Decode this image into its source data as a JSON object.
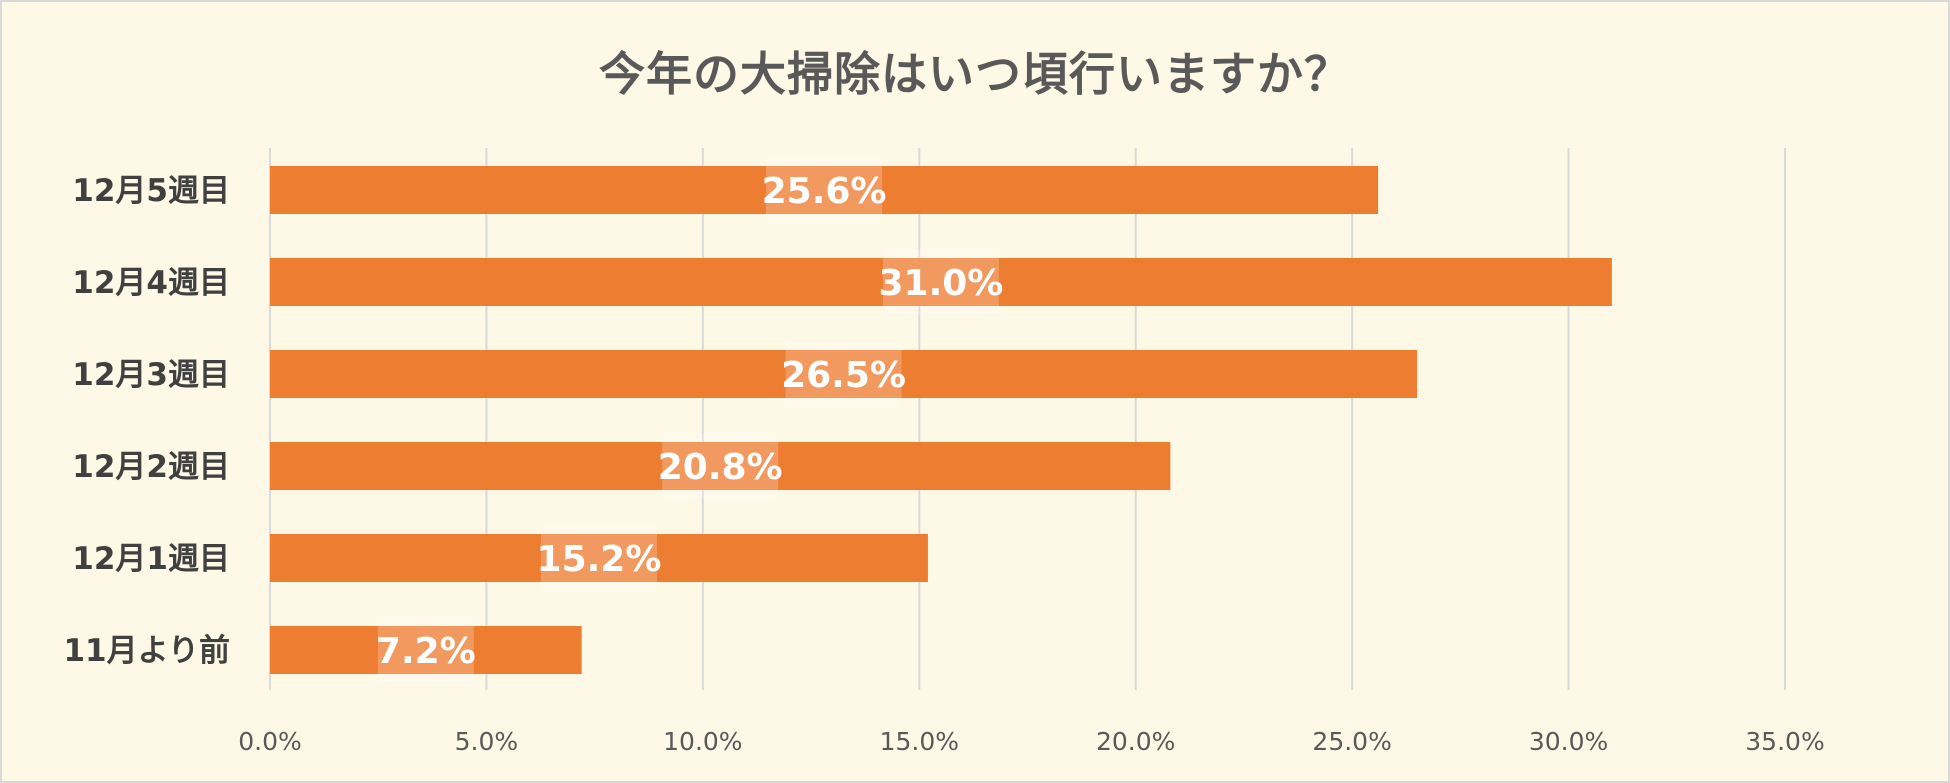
{
  "chart_data": {
    "type": "bar",
    "orientation": "horizontal",
    "title": "今年の大掃除はいつ頃行いますか？",
    "categories": [
      "12月5週目",
      "12月4週目",
      "12月3週目",
      "12月2週目",
      "12月1週目",
      "11月より前"
    ],
    "values": [
      25.6,
      31.0,
      26.5,
      20.8,
      15.2,
      7.2
    ],
    "data_labels": [
      "25.6%",
      "31.0%",
      "26.5%",
      "20.8%",
      "15.2%",
      "7.2%"
    ],
    "xlim": [
      0,
      35
    ],
    "x_ticks": [
      0,
      5,
      10,
      15,
      20,
      25,
      30,
      35
    ],
    "x_tick_labels": [
      "0.0%",
      "5.0%",
      "10.0%",
      "15.0%",
      "20.0%",
      "25.0%",
      "30.0%",
      "35.0%"
    ],
    "xlabel": "",
    "ylabel": "",
    "grid": true,
    "legend": "none",
    "colors": {
      "bar": "#ed7d31",
      "background": "#fef8e6",
      "grid": "#d9d9d9"
    }
  }
}
